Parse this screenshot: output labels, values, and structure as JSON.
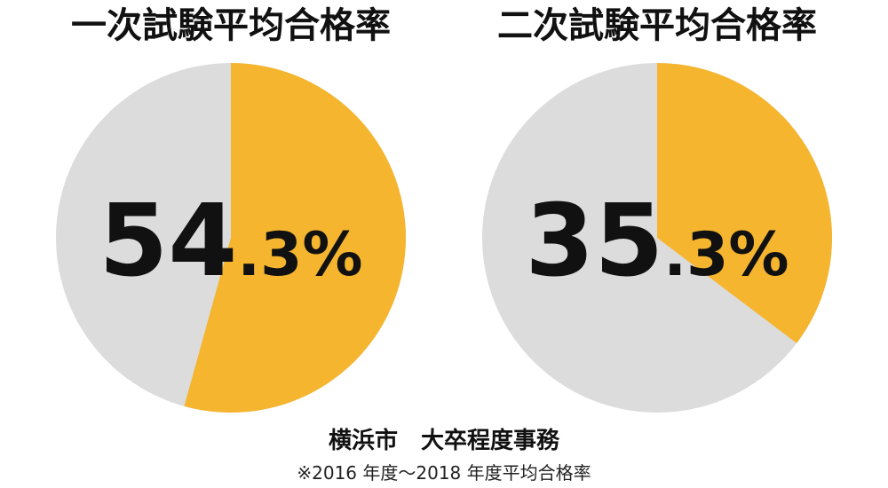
{
  "chart_data": [
    {
      "type": "pie",
      "title": "一次試験平均合格率",
      "values": [
        54.3
      ],
      "value_labels": [
        "54.3%"
      ],
      "color": "#f5b52e",
      "background": "#dcdcdc"
    },
    {
      "type": "pie",
      "title": "二次試験平均合格率",
      "values": [
        35.3
      ],
      "value_labels": [
        "35.3%"
      ],
      "color": "#f5b52e",
      "background": "#dcdcdc"
    }
  ],
  "caption": "横浜市　大卒程度事務",
  "note": "※2016 年度～2018 年度平均合格率"
}
